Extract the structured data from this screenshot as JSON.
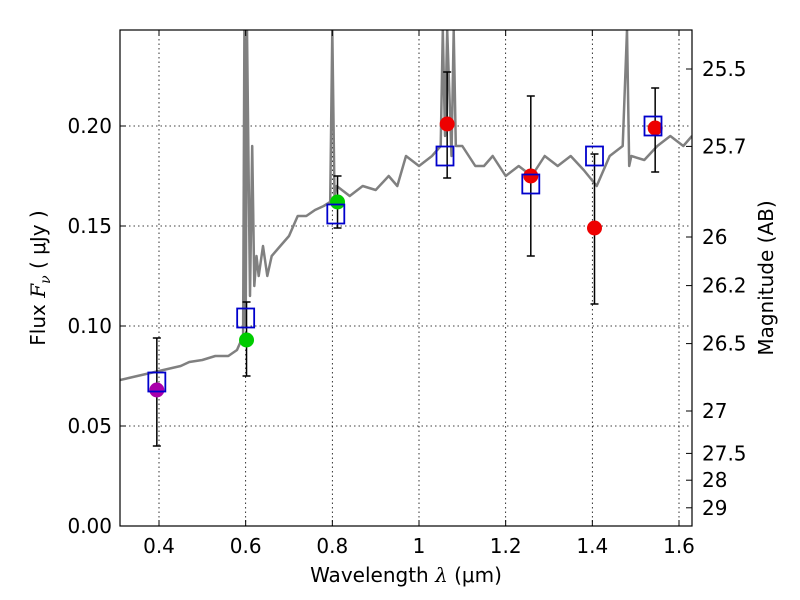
{
  "chart_data": {
    "type": "scatter",
    "xlabel": {
      "prefix": "Wavelength ",
      "symbol": "λ",
      "units": " (μm)"
    },
    "ylabel": {
      "prefix": "Flux ",
      "symbol": "F",
      "subscript": "ν",
      "units": " ( μJy )"
    },
    "y2label": "Magnitude (AB)",
    "xlim": [
      0.31,
      1.63
    ],
    "ylim": [
      0.0,
      0.248
    ],
    "x_ticks": [
      {
        "value": 0.4,
        "label": "0.4"
      },
      {
        "value": 0.6,
        "label": "0.6"
      },
      {
        "value": 0.8,
        "label": "0.8"
      },
      {
        "value": 1.0,
        "label": "1"
      },
      {
        "value": 1.2,
        "label": "1.2"
      },
      {
        "value": 1.4,
        "label": "1.4"
      },
      {
        "value": 1.6,
        "label": "1.6"
      }
    ],
    "y_ticks": [
      {
        "value": 0.0,
        "label": "0.00"
      },
      {
        "value": 0.05,
        "label": "0.05"
      },
      {
        "value": 0.1,
        "label": "0.10"
      },
      {
        "value": 0.15,
        "label": "0.15"
      },
      {
        "value": 0.2,
        "label": "0.20"
      }
    ],
    "magnitude_ticks": [
      {
        "flux": 0.2285,
        "label": "25.5"
      },
      {
        "flux": 0.1898,
        "label": "25.7"
      },
      {
        "flux": 0.1445,
        "label": "26"
      },
      {
        "flux": 0.1202,
        "label": "26.2"
      },
      {
        "flux": 0.0912,
        "label": "26.5"
      },
      {
        "flux": 0.0575,
        "label": "27"
      },
      {
        "flux": 0.0363,
        "label": "27.5"
      },
      {
        "flux": 0.0229,
        "label": "28"
      },
      {
        "flux": 0.0091,
        "label": "29"
      }
    ],
    "grid": true,
    "model_spectrum": {
      "color": "#808080",
      "x": [
        0.31,
        0.33,
        0.35,
        0.37,
        0.39,
        0.41,
        0.43,
        0.45,
        0.47,
        0.5,
        0.53,
        0.56,
        0.58,
        0.594,
        0.597,
        0.6,
        0.603,
        0.61,
        0.615,
        0.62,
        0.625,
        0.63,
        0.64,
        0.65,
        0.66,
        0.68,
        0.7,
        0.72,
        0.74,
        0.76,
        0.78,
        0.795,
        0.8,
        0.805,
        0.81,
        0.84,
        0.87,
        0.9,
        0.93,
        0.95,
        0.97,
        1.0,
        1.03,
        1.05,
        1.055,
        1.06,
        1.065,
        1.075,
        1.08,
        1.085,
        1.1,
        1.13,
        1.15,
        1.17,
        1.2,
        1.23,
        1.26,
        1.29,
        1.32,
        1.35,
        1.38,
        1.41,
        1.44,
        1.47,
        1.48,
        1.485,
        1.49,
        1.52,
        1.55,
        1.58,
        1.61,
        1.63
      ],
      "y": [
        0.073,
        0.074,
        0.075,
        0.076,
        0.077,
        0.078,
        0.079,
        0.08,
        0.082,
        0.083,
        0.085,
        0.085,
        0.088,
        0.095,
        0.248,
        0.1,
        0.248,
        0.115,
        0.19,
        0.12,
        0.135,
        0.125,
        0.14,
        0.125,
        0.135,
        0.14,
        0.145,
        0.155,
        0.155,
        0.158,
        0.16,
        0.162,
        0.248,
        0.165,
        0.17,
        0.165,
        0.17,
        0.168,
        0.175,
        0.17,
        0.185,
        0.18,
        0.185,
        0.19,
        0.248,
        0.195,
        0.248,
        0.185,
        0.248,
        0.19,
        0.19,
        0.18,
        0.18,
        0.185,
        0.175,
        0.18,
        0.175,
        0.185,
        0.18,
        0.185,
        0.178,
        0.17,
        0.185,
        0.19,
        0.248,
        0.18,
        0.185,
        0.183,
        0.19,
        0.195,
        0.19,
        0.195
      ]
    },
    "error_bars": [
      {
        "x": 0.395,
        "y": 0.068,
        "low": 0.04,
        "high": 0.094
      },
      {
        "x": 0.602,
        "y": 0.093,
        "low": 0.075,
        "high": 0.112
      },
      {
        "x": 0.812,
        "y": 0.162,
        "low": 0.149,
        "high": 0.175
      },
      {
        "x": 1.065,
        "y": 0.201,
        "low": 0.174,
        "high": 0.227
      },
      {
        "x": 1.258,
        "y": 0.175,
        "low": 0.135,
        "high": 0.215
      },
      {
        "x": 1.405,
        "y": 0.149,
        "low": 0.111,
        "high": 0.186
      },
      {
        "x": 1.545,
        "y": 0.199,
        "low": 0.177,
        "high": 0.219
      }
    ],
    "model_photometry": {
      "marker": "open-square",
      "color": "#0000cc",
      "x": [
        0.395,
        0.6,
        0.808,
        1.06,
        1.258,
        1.405,
        1.54
      ],
      "y": [
        0.072,
        0.104,
        0.156,
        0.185,
        0.171,
        0.185,
        0.2
      ]
    },
    "observed_photometry": {
      "marker": "filled-circle",
      "x": [
        0.395,
        0.602,
        0.812,
        1.065,
        1.258,
        1.405,
        1.545
      ],
      "y": [
        0.068,
        0.093,
        0.162,
        0.201,
        0.175,
        0.149,
        0.199
      ],
      "colors": [
        "#aa00aa",
        "#00cc00",
        "#00cc00",
        "#ee0000",
        "#ee0000",
        "#ee0000",
        "#ee0000"
      ]
    }
  }
}
